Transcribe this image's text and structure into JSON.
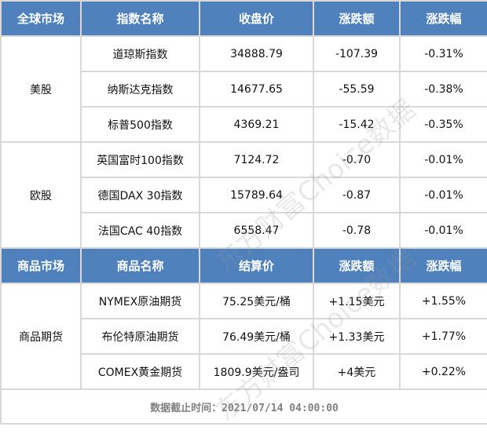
{
  "colors": {
    "header_bg": "#4f81bd",
    "border": "#d9d9d9",
    "footer_text": "#808080"
  },
  "stock_header": [
    "全球市场",
    "指数名称",
    "收盘价",
    "涨跌额",
    "涨跌幅"
  ],
  "stock_groups": [
    {
      "market": "美股",
      "rows": [
        [
          "道琼斯指数",
          "34888.79",
          "-107.39",
          "-0.31%"
        ],
        [
          "纳斯达克指数",
          "14677.65",
          "-55.59",
          "-0.38%"
        ],
        [
          "标普500指数",
          "4369.21",
          "-15.42",
          "-0.35%"
        ]
      ]
    },
    {
      "market": "欧股",
      "rows": [
        [
          "英国富时100指数",
          "7124.72",
          "-0.70",
          "-0.01%"
        ],
        [
          "德国DAX 30指数",
          "15789.64",
          "-0.87",
          "-0.01%"
        ],
        [
          "法国CAC 40指数",
          "6558.47",
          "-0.78",
          "-0.01%"
        ]
      ]
    }
  ],
  "commodity_header": [
    "商品市场",
    "商品名称",
    "结算价",
    "涨跌额",
    "涨跌幅"
  ],
  "commodity_group": {
    "market": "商品期货",
    "rows": [
      [
        "NYMEX原油期货",
        "75.25美元/桶",
        "+1.15美元",
        "+1.55%"
      ],
      [
        "布伦特原油期货",
        "76.49美元/桶",
        "+1.33美元",
        "+1.77%"
      ],
      [
        "COMEX黄金期货",
        "1809.9美元/盎司",
        "+4美元",
        "+0.22%"
      ]
    ]
  },
  "footer": "数据截止时间：2021/07/14 04:00:00",
  "watermark": "东方财富Choice数据"
}
